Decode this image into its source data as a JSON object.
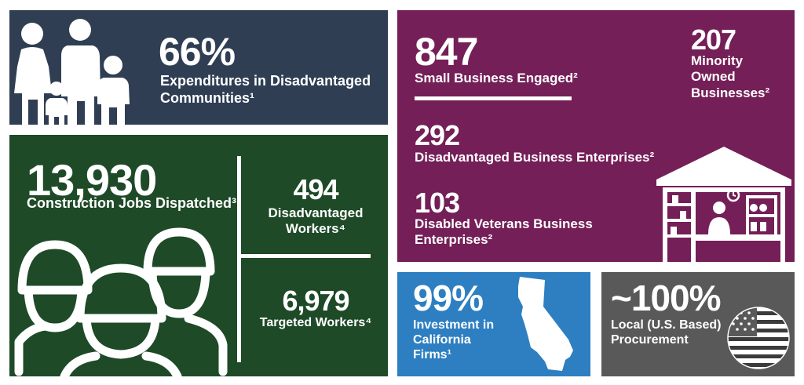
{
  "colors": {
    "navy": "#2f3e53",
    "green": "#1e4a27",
    "purple": "#741f57",
    "blue": "#2d7fc1",
    "gray": "#595959"
  },
  "expenditures": {
    "value": "66%",
    "label_line1": "Expenditures in Disadvantaged",
    "label_line2": "Communities¹",
    "icon": "family-icon"
  },
  "jobs": {
    "value": "13,930",
    "label": "Construction Jobs Dispatched³",
    "icon": "construction-workers-icon",
    "disadvantaged": {
      "value": "494",
      "label_line1": "Disadvantaged",
      "label_line2": "Workers⁴"
    },
    "targeted": {
      "value": "6,979",
      "label": "Targeted Workers⁴"
    }
  },
  "business": {
    "small": {
      "value": "847",
      "label": "Small Business Engaged²"
    },
    "minority": {
      "value": "207",
      "label_line1": "Minority",
      "label_line2": "Owned",
      "label_line3": "Businesses²"
    },
    "dbe": {
      "value": "292",
      "label": "Disadvantaged Business Enterprises²"
    },
    "veterans": {
      "value": "103",
      "label_line1": "Disabled Veterans Business",
      "label_line2": "Enterprises²"
    },
    "icon": "storefront-icon"
  },
  "investment": {
    "value": "99%",
    "label_line1": "Investment in",
    "label_line2": "California",
    "label_line3": "Firms¹",
    "icon": "california-map-icon"
  },
  "procurement": {
    "value": "~100%",
    "label_line1": "Local (U.S. Based)",
    "label_line2": "Procurement",
    "icon": "us-flag-icon"
  }
}
